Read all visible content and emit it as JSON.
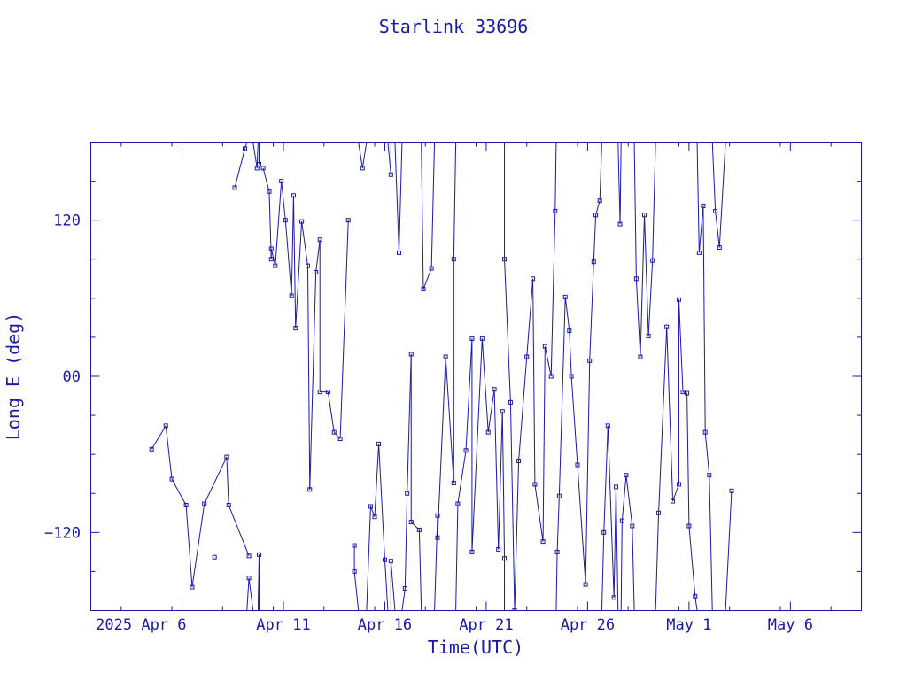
{
  "chart_data": {
    "type": "line",
    "title": "Starlink 33696",
    "xlabel": "Time(UTC)",
    "ylabel": "Long E (deg)",
    "x_unit": "date (2025, UTC)",
    "xlim": [
      "2025-04-01 12:00",
      "2025-05-09 12:00"
    ],
    "ylim": [
      -180,
      180
    ],
    "x_ticks": [
      {
        "value": "2025-04-06",
        "label": "2025 Apr  6"
      },
      {
        "value": "2025-04-11",
        "label": "Apr 11"
      },
      {
        "value": "2025-04-16",
        "label": "Apr 16"
      },
      {
        "value": "2025-04-21",
        "label": "Apr 21"
      },
      {
        "value": "2025-04-26",
        "label": "Apr 26"
      },
      {
        "value": "2025-05-01",
        "label": "May  1"
      },
      {
        "value": "2025-05-06",
        "label": "May  6"
      }
    ],
    "y_ticks": [
      {
        "value": 120,
        "label": "120"
      },
      {
        "value": 0,
        "label": "00"
      },
      {
        "value": -120,
        "label": "−120"
      }
    ],
    "grid": false,
    "legend": "none",
    "color": "#1a1aa6",
    "series": [
      {
        "x": [
          4.5,
          5.2,
          5.5,
          6.2,
          6.5,
          7.1,
          7.6,
          8.2,
          8.3,
          8.6,
          9.1,
          9.3,
          9.3,
          9.7,
          9.8,
          9.8,
          10.0,
          10.3,
          10.4,
          10.4,
          10.6,
          10.9,
          11.1,
          11.4,
          11.5,
          11.6,
          11.9,
          12.2,
          12.3,
          12.6,
          12.8,
          12.8,
          13.2,
          13.5,
          13.8,
          14.2,
          14.5,
          14.5,
          14.9,
          15.3,
          15.5,
          15.7,
          16.0,
          16.3,
          16.3,
          16.7,
          17.0,
          17.1,
          17.3,
          17.3,
          17.7,
          17.9,
          18.3,
          18.6,
          18.6,
          19.0,
          19.4,
          19.4,
          19.6,
          20.0,
          20.3,
          20.3,
          20.8,
          21.1,
          21.4,
          21.6,
          21.8,
          21.9,
          21.9,
          22.2,
          22.4,
          22.6,
          23.0,
          23.3,
          23.4,
          23.8,
          23.9,
          24.2,
          24.4,
          24.5,
          24.6,
          24.9,
          25.1,
          25.2,
          25.5,
          25.9,
          26.1,
          26.3,
          26.4,
          26.6,
          26.8,
          27.0,
          27.3,
          27.4,
          27.6,
          27.7,
          27.9,
          28.2,
          28.4,
          28.6,
          28.8,
          29.0,
          29.2,
          29.5,
          29.9,
          30.2,
          30.5,
          30.5,
          30.7,
          30.9,
          31.0,
          31.3,
          31.5,
          31.7,
          31.8,
          32.0,
          32.3,
          32.5,
          33.1
        ],
        "y": [
          -56,
          -38,
          -79,
          -99,
          -162,
          -98,
          -139,
          -62,
          -99,
          145,
          175,
          -138,
          -155,
          160,
          -137,
          163,
          160,
          142,
          90,
          98,
          85,
          150,
          120,
          62,
          139,
          37,
          119,
          85,
          -87,
          80,
          105,
          -12,
          -12,
          -43,
          -48,
          120,
          -130,
          -150,
          160,
          -100,
          -108,
          -52,
          -141,
          155,
          -142,
          95,
          -163,
          -90,
          17,
          -112,
          -118,
          67,
          83,
          -107,
          -124,
          15,
          -82,
          90,
          -98,
          -57,
          29,
          -135,
          29,
          -43,
          -10,
          -133,
          -27,
          -140,
          90,
          -20,
          -180,
          -65,
          15,
          75,
          -83,
          -127,
          23,
          0,
          127,
          -135,
          -92,
          61,
          35,
          0,
          -68,
          -160,
          12,
          88,
          124,
          135,
          -120,
          -38,
          -170,
          -85,
          117,
          -111,
          -76,
          -115,
          75,
          15,
          124,
          31,
          89,
          -105,
          38,
          -96,
          -83,
          59,
          -12,
          -13,
          -115,
          -169,
          95,
          131,
          -43,
          -76,
          127,
          99,
          -88
        ],
        "draw_order": [
          [
            0,
            1,
            2,
            3,
            4,
            5,
            7,
            8,
            11
          ],
          [
            9,
            10,
            12,
            13,
            14,
            15
          ],
          [
            16,
            17,
            18,
            19,
            20,
            21,
            22,
            23,
            24,
            25,
            26,
            27,
            28,
            29,
            30,
            31,
            32,
            33,
            34,
            35
          ],
          [
            36,
            37,
            38,
            39,
            40,
            41,
            42,
            43,
            44,
            45,
            46,
            47,
            48,
            49,
            50,
            51,
            52,
            53,
            54,
            55,
            56,
            57,
            58,
            59,
            60,
            61,
            62,
            63,
            64,
            65,
            66,
            67,
            68,
            69,
            70,
            71,
            72,
            73,
            74,
            75,
            76,
            77,
            78,
            79,
            80,
            81,
            82,
            83,
            84,
            85,
            86,
            87,
            88,
            89,
            90,
            91,
            92,
            93,
            94,
            95,
            96,
            97,
            98,
            99,
            100,
            101,
            102,
            103,
            104,
            105,
            106,
            107,
            108,
            109,
            110,
            111,
            112,
            113,
            114,
            115,
            116,
            117,
            118
          ]
        ]
      }
    ]
  }
}
